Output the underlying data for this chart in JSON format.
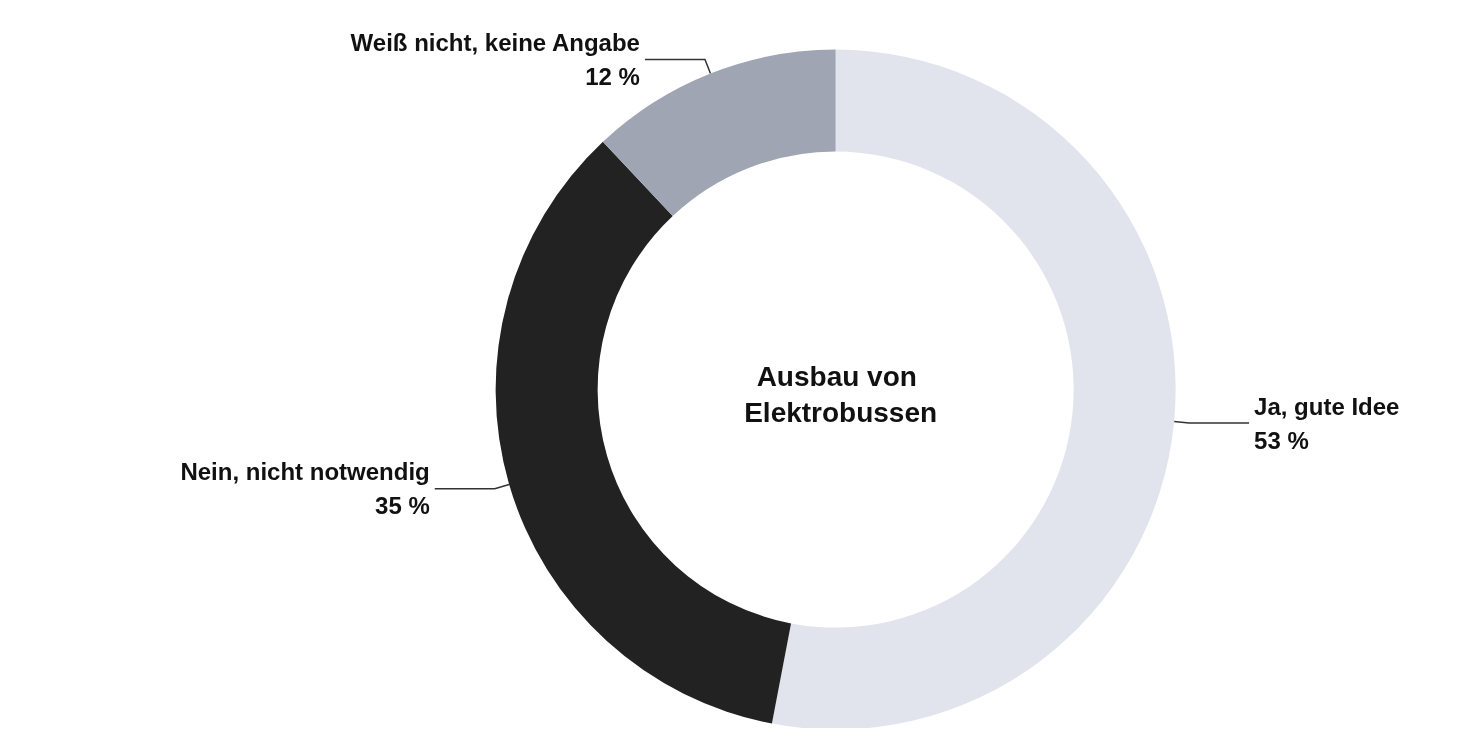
{
  "chart_data": {
    "type": "donut",
    "title": "Ausbau von Elektrobussen",
    "categories": [
      "Ja, gute Idee",
      "Nein, nicht notwendig",
      "Weiß nicht, keine Angabe"
    ],
    "values": [
      53,
      35,
      12
    ],
    "colors": [
      "#e1e4ed",
      "#222222",
      "#9fa5b3"
    ],
    "value_labels": [
      "53 %",
      "35 %",
      "12 %"
    ],
    "legend": false
  }
}
